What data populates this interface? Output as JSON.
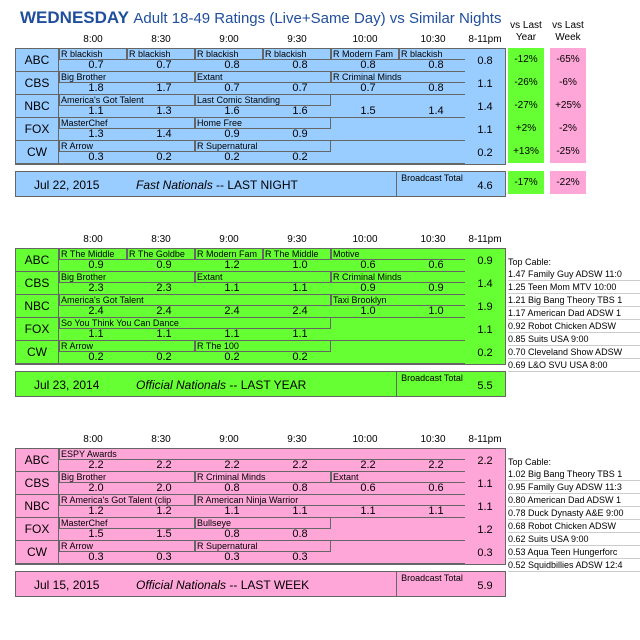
{
  "title": {
    "day": "WEDNESDAY",
    "subtitle": "Adult 18-49 Ratings (Live+Same Day) vs Similar Nights"
  },
  "time_slots": [
    "8:00",
    "8:30",
    "9:00",
    "9:30",
    "10:00",
    "10:30",
    "8-11pm"
  ],
  "compare_headers": {
    "last_year": "vs Last Year",
    "last_week": "vs Last Week"
  },
  "sections": [
    {
      "theme": "blue",
      "date": "Jul 22, 2015",
      "desc_italic": "Fast Nationals",
      "desc_plain": "-- LAST NIGHT",
      "broadcast_label": "Broadcast Total",
      "broadcast_total": "4.6",
      "broadcast_cmp_year": "-17%",
      "broadcast_cmp_week": "-22%",
      "rows": [
        {
          "net": "ABC",
          "shows": [
            {
              "name": "R blackish",
              "slot": 0,
              "span": 1
            },
            {
              "name": "R blackish",
              "slot": 1,
              "span": 1
            },
            {
              "name": "R blackish",
              "slot": 2,
              "span": 1
            },
            {
              "name": "R blackish",
              "slot": 3,
              "span": 1
            },
            {
              "name": "R Modern Fam",
              "slot": 4,
              "span": 1
            },
            {
              "name": "R blackish",
              "slot": 5,
              "span": 1
            }
          ],
          "values": [
            "0.7",
            "0.7",
            "0.8",
            "0.8",
            "0.8",
            "0.8"
          ],
          "total": "0.8",
          "cmp_year": "-12%",
          "cmp_week": "-65%"
        },
        {
          "net": "CBS",
          "shows": [
            {
              "name": "Big Brother",
              "slot": 0,
              "span": 2
            },
            {
              "name": "Extant",
              "slot": 2,
              "span": 2
            },
            {
              "name": "R Criminal Minds",
              "slot": 4,
              "span": 2
            }
          ],
          "values": [
            "1.8",
            "1.7",
            "0.7",
            "0.7",
            "0.7",
            "0.8"
          ],
          "total": "1.1",
          "cmp_year": "-26%",
          "cmp_week": "-6%"
        },
        {
          "net": "NBC",
          "shows": [
            {
              "name": "America's Got Talent",
              "slot": 0,
              "span": 2
            },
            {
              "name": "Last Comic Standing",
              "slot": 2,
              "span": 2
            }
          ],
          "values": [
            "1.1",
            "1.3",
            "1.6",
            "1.6",
            "1.5",
            "1.4"
          ],
          "total": "1.4",
          "cmp_year": "-27%",
          "cmp_week": "+25%"
        },
        {
          "net": "FOX",
          "shows": [
            {
              "name": "MasterChef",
              "slot": 0,
              "span": 2
            },
            {
              "name": "Home Free",
              "slot": 2,
              "span": 2
            }
          ],
          "values": [
            "1.3",
            "1.4",
            "0.9",
            "0.9",
            "",
            ""
          ],
          "total": "1.1",
          "cmp_year": "+2%",
          "cmp_week": "-2%"
        },
        {
          "net": "CW",
          "shows": [
            {
              "name": "R Arrow",
              "slot": 0,
              "span": 2
            },
            {
              "name": "R Supernatural",
              "slot": 2,
              "span": 2
            }
          ],
          "values": [
            "0.3",
            "0.2",
            "0.2",
            "0.2",
            "",
            ""
          ],
          "total": "0.2",
          "cmp_year": "+13%",
          "cmp_week": "-25%"
        }
      ]
    },
    {
      "theme": "green",
      "date": "Jul 23, 2014",
      "desc_italic": "Official Nationals",
      "desc_plain": "-- LAST YEAR",
      "broadcast_label": "Broadcast Total",
      "broadcast_total": "5.5",
      "top_cable_title": "Top Cable:",
      "top_cable": [
        "1.47 Family Guy ADSW 11:0",
        "1.25 Teen Mom MTV 10:00",
        "1.21 Big Bang Theory TBS 1",
        "1.17 American Dad ADSW 1",
        "0.92 Robot Chicken ADSW",
        "0.85 Suits USA 9:00",
        "0.70 Cleveland Show ADSW",
        "0.69 L&O SVU USA 8:00"
      ],
      "rows": [
        {
          "net": "ABC",
          "shows": [
            {
              "name": "R The Middle",
              "slot": 0,
              "span": 1
            },
            {
              "name": "R The Goldbe",
              "slot": 1,
              "span": 1
            },
            {
              "name": "R Modern Fam",
              "slot": 2,
              "span": 1
            },
            {
              "name": "R The Middle",
              "slot": 3,
              "span": 1
            },
            {
              "name": "Motive",
              "slot": 4,
              "span": 2
            }
          ],
          "values": [
            "0.9",
            "0.9",
            "1.2",
            "1.0",
            "0.6",
            "0.6"
          ],
          "total": "0.9"
        },
        {
          "net": "CBS",
          "shows": [
            {
              "name": "Big Brother",
              "slot": 0,
              "span": 2
            },
            {
              "name": "Extant",
              "slot": 2,
              "span": 2
            },
            {
              "name": "R Criminal Minds",
              "slot": 4,
              "span": 2
            }
          ],
          "values": [
            "2.3",
            "2.3",
            "1.1",
            "1.1",
            "0.9",
            "0.9"
          ],
          "total": "1.4"
        },
        {
          "net": "NBC",
          "shows": [
            {
              "name": "America's Got Talent",
              "slot": 0,
              "span": 4
            },
            {
              "name": "Taxi Brooklyn",
              "slot": 4,
              "span": 2
            }
          ],
          "values": [
            "2.4",
            "2.4",
            "2.4",
            "2.4",
            "1.0",
            "1.0"
          ],
          "total": "1.9"
        },
        {
          "net": "FOX",
          "shows": [
            {
              "name": "So You Think You Can Dance",
              "slot": 0,
              "span": 4
            }
          ],
          "values": [
            "1.1",
            "1.1",
            "1.1",
            "1.1",
            "",
            ""
          ],
          "total": "1.1"
        },
        {
          "net": "CW",
          "shows": [
            {
              "name": "R Arrow",
              "slot": 0,
              "span": 2
            },
            {
              "name": "R The 100",
              "slot": 2,
              "span": 2
            }
          ],
          "values": [
            "0.2",
            "0.2",
            "0.2",
            "0.2",
            "",
            ""
          ],
          "total": "0.2"
        }
      ]
    },
    {
      "theme": "pink",
      "date": "Jul 15, 2015",
      "desc_italic": "Official Nationals",
      "desc_plain": "-- LAST WEEK",
      "broadcast_label": "Broadcast Total",
      "broadcast_total": "5.9",
      "top_cable_title": "Top Cable:",
      "top_cable": [
        "1.02 Big Bang Theory TBS 1",
        "0.95 Family Guy ADSW 11:3",
        "0.80 American Dad ADSW 1",
        "0.78 Duck Dynasty A&E 9:00",
        "0.68 Robot Chicken ADSW",
        "0.62 Suits USA 9:00",
        "0.53 Aqua Teen Hungerforc",
        "0.52 Squidbillies ADSW 12:4"
      ],
      "rows": [
        {
          "net": "ABC",
          "shows": [
            {
              "name": "ESPY Awards",
              "slot": 0,
              "span": 6
            }
          ],
          "values": [
            "2.2",
            "2.2",
            "2.2",
            "2.2",
            "2.2",
            "2.2"
          ],
          "total": "2.2"
        },
        {
          "net": "CBS",
          "shows": [
            {
              "name": "Big Brother",
              "slot": 0,
              "span": 2
            },
            {
              "name": "R Criminal Minds",
              "slot": 2,
              "span": 2
            },
            {
              "name": "Extant",
              "slot": 4,
              "span": 2
            }
          ],
          "values": [
            "2.0",
            "2.0",
            "0.8",
            "0.8",
            "0.6",
            "0.6"
          ],
          "total": "1.1"
        },
        {
          "net": "NBC",
          "shows": [
            {
              "name": "R America's Got Talent (clip",
              "slot": 0,
              "span": 2
            },
            {
              "name": "R American Ninja Warrior",
              "slot": 2,
              "span": 4
            }
          ],
          "values": [
            "1.2",
            "1.2",
            "1.1",
            "1.1",
            "1.1",
            "1.1"
          ],
          "total": "1.1"
        },
        {
          "net": "FOX",
          "shows": [
            {
              "name": "MasterChef",
              "slot": 0,
              "span": 2
            },
            {
              "name": "Bullseye",
              "slot": 2,
              "span": 2
            }
          ],
          "values": [
            "1.5",
            "1.5",
            "0.8",
            "0.8",
            "",
            ""
          ],
          "total": "1.2"
        },
        {
          "net": "CW",
          "shows": [
            {
              "name": "R Arrow",
              "slot": 0,
              "span": 2
            },
            {
              "name": "R Supernatural",
              "slot": 2,
              "span": 2
            }
          ],
          "values": [
            "0.3",
            "0.3",
            "0.3",
            "0.3",
            "",
            ""
          ],
          "total": "0.3"
        }
      ]
    }
  ]
}
